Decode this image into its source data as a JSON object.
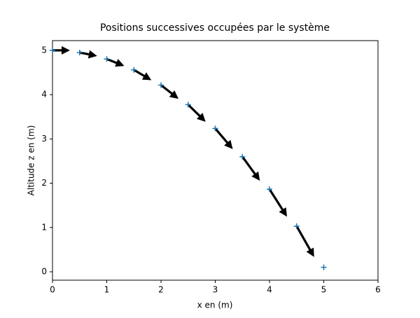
{
  "chart_data": {
    "type": "scatter",
    "title": "Positions successives occupées par le système",
    "x_label": "x en (m)",
    "y_label": "Altitude z en (m)",
    "x": [
      0,
      0.5,
      1,
      1.5,
      2,
      2.5,
      3,
      3.5,
      4,
      4.5,
      5
    ],
    "values": [
      5,
      4.951,
      4.804,
      4.559,
      4.216,
      3.775,
      3.236,
      2.599,
      1.864,
      1.031,
      0.1
    ],
    "color": "#1f77b4",
    "quiver": {
      "color": "#000000",
      "u": [
        5,
        5,
        5,
        5,
        5,
        5,
        5,
        5,
        5,
        5,
        null
      ],
      "v": [
        0,
        -0.98,
        -1.96,
        -2.94,
        -3.92,
        -4.9,
        -5.88,
        -6.86,
        -7.84,
        -8.82,
        null
      ]
    },
    "xlim": [
      0,
      6
    ],
    "ylim": [
      -0.19,
      5.22
    ],
    "xticks": [
      0,
      1,
      2,
      3,
      4,
      5,
      6
    ],
    "yticks": [
      0,
      1,
      2,
      3,
      4,
      5
    ]
  }
}
